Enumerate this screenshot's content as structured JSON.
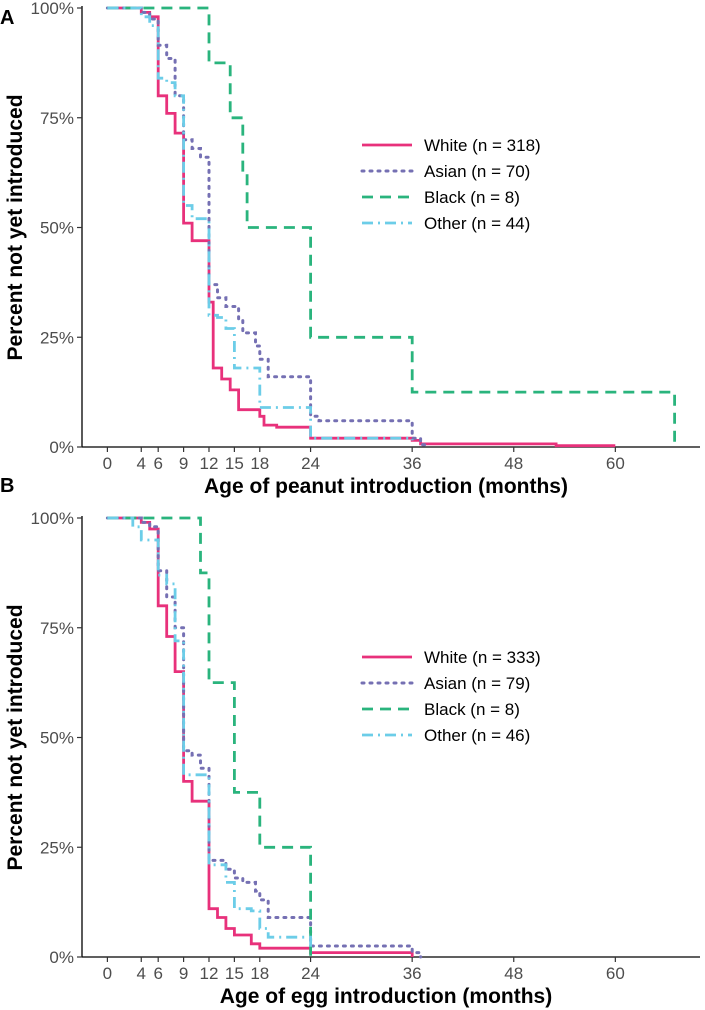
{
  "chart_data": [
    {
      "type": "line",
      "panel_label": "A",
      "xlabel": "Age of peanut introduction (months)",
      "ylabel": "Percent not yet introduced",
      "xticks": [
        0,
        4,
        6,
        9,
        12,
        15,
        18,
        24,
        36,
        48,
        60
      ],
      "xtick_labels": [
        "0",
        "4",
        "6",
        "9",
        "12",
        "15",
        "18",
        "24",
        "36",
        "48",
        "60"
      ],
      "yticks": [
        0,
        25,
        50,
        75,
        100
      ],
      "ytick_labels": [
        "0%",
        "25%",
        "50%",
        "75%",
        "100%"
      ],
      "xlim": [
        -3,
        70
      ],
      "ylim": [
        0,
        100
      ],
      "legend_position": "right",
      "series": [
        {
          "name": "White (n = 318)",
          "color": "#e8317b",
          "dash": "solid",
          "points": [
            [
              0,
              100
            ],
            [
              4,
              99
            ],
            [
              5,
              98
            ],
            [
              6,
              80
            ],
            [
              7,
              76
            ],
            [
              8,
              71.5
            ],
            [
              9,
              51
            ],
            [
              10,
              47
            ],
            [
              12,
              33
            ],
            [
              12.5,
              18
            ],
            [
              13.5,
              15.5
            ],
            [
              14.5,
              13
            ],
            [
              15.5,
              8.5
            ],
            [
              18,
              7
            ],
            [
              18.5,
              5
            ],
            [
              20,
              4.5
            ],
            [
              24,
              2
            ],
            [
              36,
              1.5
            ],
            [
              37,
              0.7
            ],
            [
              53,
              0.3
            ],
            [
              60,
              0.3
            ]
          ]
        },
        {
          "name": "Asian (n = 70)",
          "color": "#7570b3",
          "dash": "dot",
          "points": [
            [
              0,
              100
            ],
            [
              4,
              99
            ],
            [
              5,
              97.5
            ],
            [
              6,
              91.5
            ],
            [
              7,
              88.5
            ],
            [
              8,
              80
            ],
            [
              9,
              70
            ],
            [
              10,
              68
            ],
            [
              11,
              66
            ],
            [
              12,
              37
            ],
            [
              13,
              34
            ],
            [
              14,
              32
            ],
            [
              15.5,
              29
            ],
            [
              16,
              26
            ],
            [
              17.5,
              23
            ],
            [
              18,
              20
            ],
            [
              19,
              16
            ],
            [
              24,
              7
            ],
            [
              25,
              6
            ],
            [
              36,
              2
            ],
            [
              37,
              0.5
            ],
            [
              38,
              0.5
            ]
          ]
        },
        {
          "name": "Black (n = 8)",
          "color": "#2ab47d",
          "dash": "dash",
          "points": [
            [
              0,
              100
            ],
            [
              12,
              87.5
            ],
            [
              14.5,
              75
            ],
            [
              16,
              62.5
            ],
            [
              16.5,
              50
            ],
            [
              24,
              25
            ],
            [
              36,
              12.5
            ],
            [
              67,
              0
            ]
          ]
        },
        {
          "name": "Other (n = 44)",
          "color": "#6ccde8",
          "dash": "dashdot",
          "points": [
            [
              0,
              100
            ],
            [
              4,
              98
            ],
            [
              5,
              96
            ],
            [
              6,
              84
            ],
            [
              7,
              83
            ],
            [
              8,
              80
            ],
            [
              9,
              55
            ],
            [
              10,
              52
            ],
            [
              12,
              30
            ],
            [
              13,
              29.5
            ],
            [
              14,
              27
            ],
            [
              15,
              18
            ],
            [
              16.5,
              18
            ],
            [
              18,
              9
            ],
            [
              21,
              9
            ],
            [
              24,
              2
            ],
            [
              36,
              1.5
            ]
          ]
        }
      ]
    },
    {
      "type": "line",
      "panel_label": "B",
      "xlabel": "Age of egg introduction (months)",
      "ylabel": "Percent not yet introduced",
      "xticks": [
        0,
        4,
        6,
        9,
        12,
        15,
        18,
        24,
        36,
        48,
        60
      ],
      "xtick_labels": [
        "0",
        "4",
        "6",
        "9",
        "12",
        "15",
        "18",
        "24",
        "36",
        "48",
        "60"
      ],
      "yticks": [
        0,
        25,
        50,
        75,
        100
      ],
      "ytick_labels": [
        "0%",
        "25%",
        "50%",
        "75%",
        "100%"
      ],
      "xlim": [
        -3,
        70
      ],
      "ylim": [
        0,
        100
      ],
      "legend_position": "right",
      "series": [
        {
          "name": "White (n = 333)",
          "color": "#e8317b",
          "dash": "solid",
          "points": [
            [
              0,
              100
            ],
            [
              4,
              99
            ],
            [
              5,
              97.5
            ],
            [
              6,
              80
            ],
            [
              7,
              73
            ],
            [
              8,
              65
            ],
            [
              9,
              40
            ],
            [
              10,
              35.5
            ],
            [
              12,
              11
            ],
            [
              13,
              9
            ],
            [
              14,
              6.5
            ],
            [
              15,
              5
            ],
            [
              17,
              3
            ],
            [
              18,
              2
            ],
            [
              24,
              1
            ],
            [
              36,
              0
            ]
          ]
        },
        {
          "name": "Asian (n = 79)",
          "color": "#7570b3",
          "dash": "dot",
          "points": [
            [
              0,
              100
            ],
            [
              4,
              99
            ],
            [
              5,
              98
            ],
            [
              6,
              88
            ],
            [
              7,
              82
            ],
            [
              8,
              75
            ],
            [
              9,
              47
            ],
            [
              10,
              46
            ],
            [
              11,
              43
            ],
            [
              12,
              22
            ],
            [
              14,
              20
            ],
            [
              15,
              18
            ],
            [
              16,
              17
            ],
            [
              17.5,
              15
            ],
            [
              18,
              13
            ],
            [
              19,
              9
            ],
            [
              24,
              2.5
            ],
            [
              36,
              1
            ],
            [
              37,
              0
            ]
          ]
        },
        {
          "name": "Black (n = 8)",
          "color": "#2ab47d",
          "dash": "dash",
          "points": [
            [
              0,
              100
            ],
            [
              11,
              87.5
            ],
            [
              12,
              62.5
            ],
            [
              15,
              37.5
            ],
            [
              18,
              25
            ],
            [
              24,
              0
            ]
          ]
        },
        {
          "name": "Other (n = 46)",
          "color": "#6ccde8",
          "dash": "dashdot",
          "points": [
            [
              0,
              100
            ],
            [
              3,
              98
            ],
            [
              4,
              95
            ],
            [
              6,
              87
            ],
            [
              7,
              85
            ],
            [
              8,
              72
            ],
            [
              9,
              41.5
            ],
            [
              11,
              41.5
            ],
            [
              12,
              21
            ],
            [
              14,
              17
            ],
            [
              15,
              11
            ],
            [
              17,
              10.5
            ],
            [
              18,
              6.5
            ],
            [
              19,
              4.5
            ],
            [
              24,
              1.5
            ]
          ]
        }
      ]
    }
  ]
}
